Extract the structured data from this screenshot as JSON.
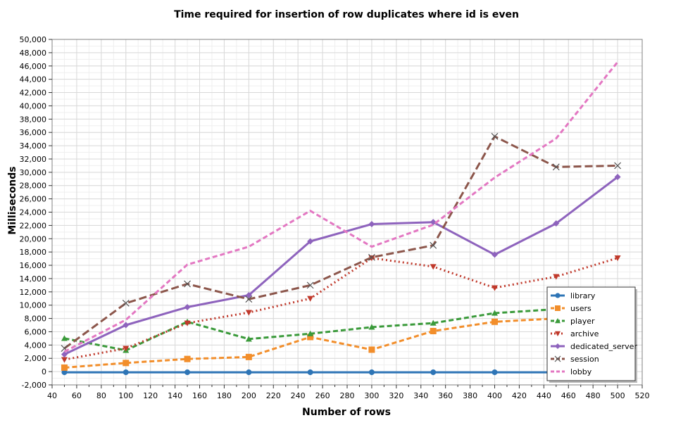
{
  "chart_data": {
    "type": "line",
    "title": "Time required for insertion of row duplicates where id is even",
    "xlabel": "Number of rows",
    "ylabel": "Milliseconds",
    "xlim": [
      40,
      520
    ],
    "ylim": [
      -2000,
      50000
    ],
    "x_ticks": [
      40,
      60,
      80,
      100,
      120,
      140,
      160,
      180,
      200,
      220,
      240,
      260,
      280,
      300,
      320,
      340,
      360,
      380,
      400,
      420,
      440,
      460,
      480,
      500,
      520
    ],
    "x_tick_labels": [
      "40",
      "60",
      "80",
      "100",
      "120",
      "140",
      "160",
      "180",
      "200",
      "220",
      "240",
      "260",
      "280",
      "300",
      "320",
      "340",
      "360",
      "380",
      "400",
      "420",
      "440",
      "460",
      "480",
      "500",
      "520"
    ],
    "y_ticks": [
      -2000,
      0,
      2000,
      4000,
      6000,
      8000,
      10000,
      12000,
      14000,
      16000,
      18000,
      20000,
      22000,
      24000,
      26000,
      28000,
      30000,
      32000,
      34000,
      36000,
      38000,
      40000,
      42000,
      44000,
      46000,
      48000,
      50000
    ],
    "y_tick_labels": [
      "-2,000",
      "0",
      "2,000",
      "4,000",
      "6,000",
      "8,000",
      "10,000",
      "12,000",
      "14,000",
      "16,000",
      "18,000",
      "20,000",
      "22,000",
      "24,000",
      "26,000",
      "28,000",
      "30,000",
      "32,000",
      "34,000",
      "36,000",
      "38,000",
      "40,000",
      "42,000",
      "44,000",
      "46,000",
      "48,000",
      "50,000"
    ],
    "grid": true,
    "legend_position": "bottom-right",
    "x": [
      50,
      100,
      150,
      200,
      250,
      300,
      350,
      400,
      450,
      500
    ],
    "series": [
      {
        "name": "library",
        "color": "#2e75b6",
        "marker": "circle",
        "dash": "solid",
        "values": [
          -100,
          -100,
          -100,
          -100,
          -100,
          -100,
          -100,
          -100,
          -100,
          -100
        ]
      },
      {
        "name": "users",
        "color": "#f28e2b",
        "marker": "square",
        "dash": "dashed",
        "values": [
          600,
          1300,
          1900,
          2200,
          5200,
          3300,
          6100,
          7500,
          8000,
          8200
        ]
      },
      {
        "name": "player",
        "color": "#3a9a3a",
        "marker": "triangle-up",
        "dash": "dashed",
        "values": [
          5000,
          3200,
          7500,
          4900,
          5700,
          6700,
          7300,
          8800,
          9400,
          9800
        ]
      },
      {
        "name": "archive",
        "color": "#c0392b",
        "marker": "triangle-down",
        "dash": "dotted",
        "values": [
          1800,
          3500,
          7300,
          8900,
          11000,
          17100,
          15800,
          12600,
          14300,
          17100
        ]
      },
      {
        "name": "dedicated_server",
        "color": "#8e63bd",
        "marker": "diamond",
        "dash": "solid-thick",
        "values": [
          2600,
          7000,
          9700,
          11500,
          19600,
          22200,
          22500,
          17600,
          22300,
          29300
        ]
      },
      {
        "name": "session",
        "color": "#8c564b",
        "marker": "x",
        "dash": "longdash",
        "values": [
          3500,
          10300,
          13200,
          10900,
          13000,
          17200,
          19000,
          35400,
          30800,
          31000
        ]
      },
      {
        "name": "lobby",
        "color": "#e377c2",
        "marker": "none",
        "dash": "dashed",
        "values": [
          3000,
          7800,
          16100,
          18800,
          24200,
          18800,
          22100,
          29200,
          35100,
          46600
        ]
      }
    ]
  }
}
